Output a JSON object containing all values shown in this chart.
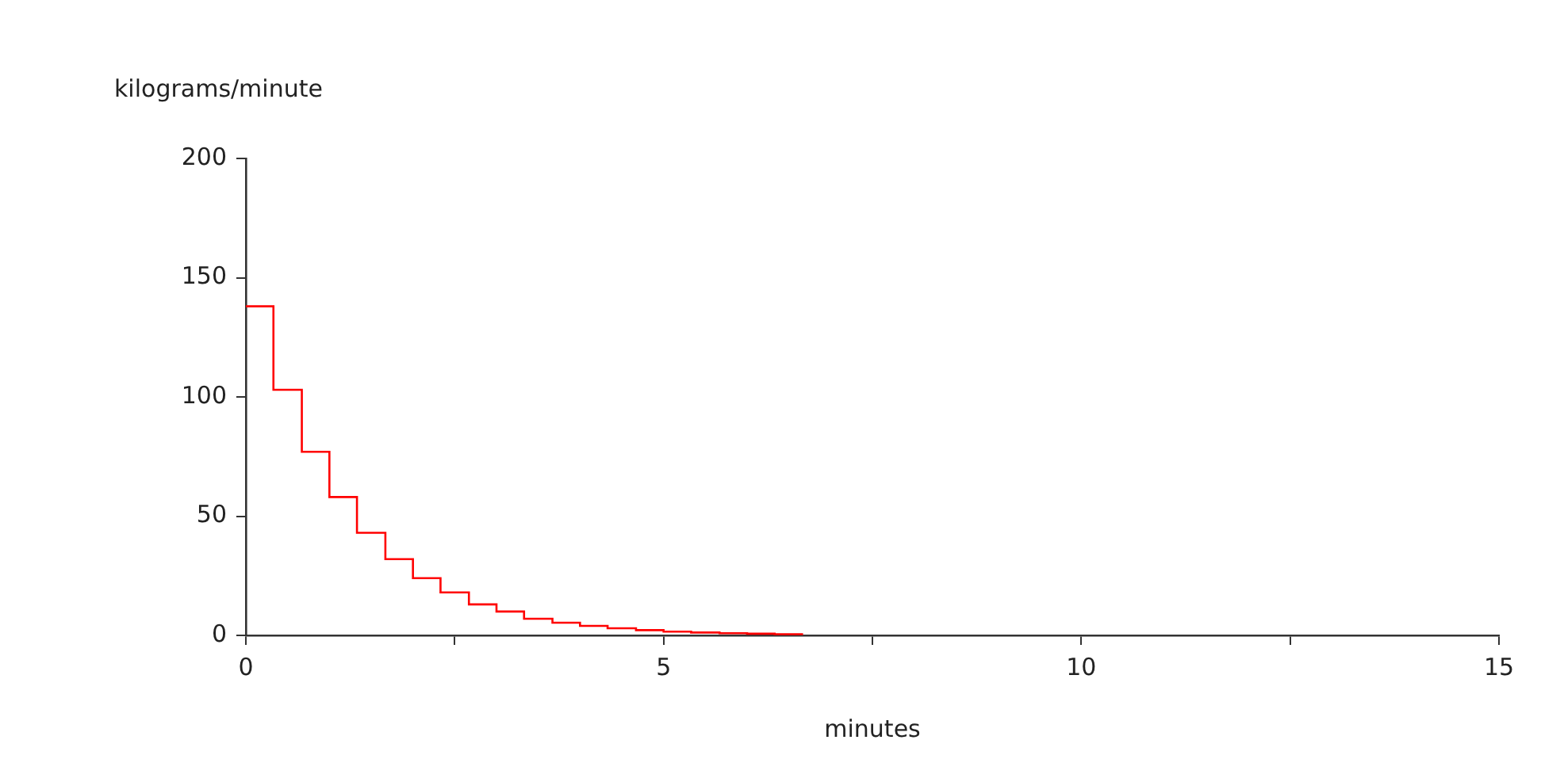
{
  "chart_data": {
    "type": "histogram",
    "xlabel": "minutes",
    "ylabel": "kilograms/minute",
    "bins": [
      0,
      0.33,
      0.67,
      1,
      1.33,
      1.67,
      2,
      2.33,
      2.67,
      3,
      3.33,
      3.67,
      4,
      4.33,
      4.67,
      5,
      5.33,
      5.67,
      6,
      6.33,
      6.67
    ],
    "values": [
      138,
      103,
      77,
      58,
      43,
      32,
      24,
      18,
      13,
      10,
      7,
      5.3,
      4,
      3,
      2.2,
      1.6,
      1.2,
      0.9,
      0.7,
      0.5
    ],
    "color": "#ff0000",
    "xlim": [
      0,
      15
    ],
    "ylim": [
      0,
      200
    ],
    "xticks": [
      0,
      {
        "value": 2.5,
        "label": null
      },
      5,
      {
        "value": 7.5,
        "label": null
      },
      10,
      {
        "value": 12.5,
        "label": null
      },
      15
    ],
    "yticks": [
      0,
      50,
      100,
      150,
      200
    ],
    "grid": false,
    "legend": false
  }
}
